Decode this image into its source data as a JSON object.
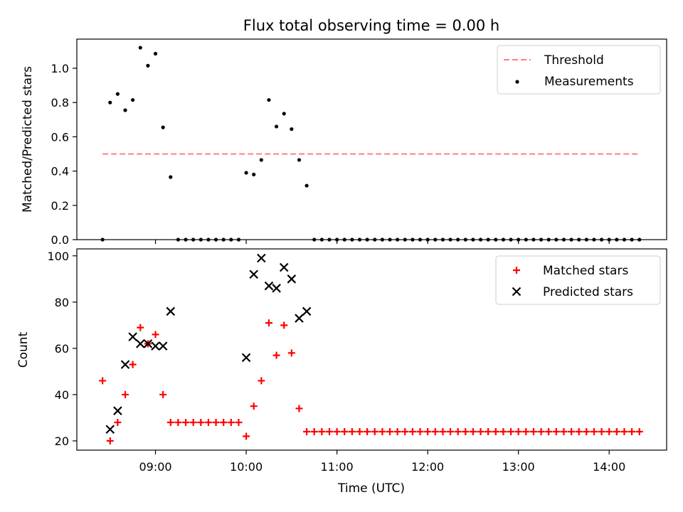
{
  "chart_data": [
    {
      "type": "scatter",
      "title": "Flux total observing time = 0.00 h",
      "xlabel": "",
      "ylabel": "Matched/Predicted stars",
      "ylim": [
        0,
        1.17
      ],
      "xlim": [
        "08:08",
        "14:38"
      ],
      "y_ticks": [
        "0.0",
        "0.2",
        "0.4",
        "0.6",
        "0.8",
        "1.0"
      ],
      "y_tick_values": [
        0,
        0.2,
        0.4,
        0.6,
        0.8,
        1.0
      ],
      "legend_position": "top-right",
      "threshold": {
        "name": "Threshold",
        "y": 0.5,
        "x_start": "08:25",
        "x_end": "14:20",
        "color": "#ff7f7f",
        "style": "dashed"
      },
      "series": [
        {
          "name": "Measurements",
          "color": "#000000",
          "marker": "dot",
          "points": [
            [
              "08:25",
              0.0
            ],
            [
              "08:30",
              0.8
            ],
            [
              "08:35",
              0.85
            ],
            [
              "08:40",
              0.755
            ],
            [
              "08:45",
              0.815
            ],
            [
              "08:50",
              1.12
            ],
            [
              "08:55",
              1.015
            ],
            [
              "09:00",
              1.085
            ],
            [
              "09:05",
              0.655
            ],
            [
              "09:10",
              0.365
            ],
            [
              "09:15",
              0.0
            ],
            [
              "09:20",
              0.0
            ],
            [
              "09:25",
              0.0
            ],
            [
              "09:30",
              0.0
            ],
            [
              "09:35",
              0.0
            ],
            [
              "09:40",
              0.0
            ],
            [
              "09:45",
              0.0
            ],
            [
              "09:50",
              0.0
            ],
            [
              "09:55",
              0.0
            ],
            [
              "10:00",
              0.39
            ],
            [
              "10:05",
              0.38
            ],
            [
              "10:10",
              0.465
            ],
            [
              "10:15",
              0.815
            ],
            [
              "10:20",
              0.66
            ],
            [
              "10:25",
              0.735
            ],
            [
              "10:30",
              0.645
            ],
            [
              "10:35",
              0.465
            ],
            [
              "10:40",
              0.315
            ],
            [
              "10:45",
              0.0
            ],
            [
              "10:50",
              0.0
            ],
            [
              "10:55",
              0.0
            ],
            [
              "11:00",
              0.0
            ],
            [
              "11:05",
              0.0
            ],
            [
              "11:10",
              0.0
            ],
            [
              "11:15",
              0.0
            ],
            [
              "11:20",
              0.0
            ],
            [
              "11:25",
              0.0
            ],
            [
              "11:30",
              0.0
            ],
            [
              "11:35",
              0.0
            ],
            [
              "11:40",
              0.0
            ],
            [
              "11:45",
              0.0
            ],
            [
              "11:50",
              0.0
            ],
            [
              "11:55",
              0.0
            ],
            [
              "12:00",
              0.0
            ],
            [
              "12:05",
              0.0
            ],
            [
              "12:10",
              0.0
            ],
            [
              "12:15",
              0.0
            ],
            [
              "12:20",
              0.0
            ],
            [
              "12:25",
              0.0
            ],
            [
              "12:30",
              0.0
            ],
            [
              "12:35",
              0.0
            ],
            [
              "12:40",
              0.0
            ],
            [
              "12:45",
              0.0
            ],
            [
              "12:50",
              0.0
            ],
            [
              "12:55",
              0.0
            ],
            [
              "13:00",
              0.0
            ],
            [
              "13:05",
              0.0
            ],
            [
              "13:10",
              0.0
            ],
            [
              "13:15",
              0.0
            ],
            [
              "13:20",
              0.0
            ],
            [
              "13:25",
              0.0
            ],
            [
              "13:30",
              0.0
            ],
            [
              "13:35",
              0.0
            ],
            [
              "13:40",
              0.0
            ],
            [
              "13:45",
              0.0
            ],
            [
              "13:50",
              0.0
            ],
            [
              "13:55",
              0.0
            ],
            [
              "14:00",
              0.0
            ],
            [
              "14:05",
              0.0
            ],
            [
              "14:10",
              0.0
            ],
            [
              "14:15",
              0.0
            ],
            [
              "14:20",
              0.0
            ]
          ]
        }
      ]
    },
    {
      "type": "scatter",
      "title": "",
      "xlabel": "Time (UTC)",
      "ylabel": "Count",
      "ylim": [
        16,
        103
      ],
      "xlim": [
        "08:08",
        "14:38"
      ],
      "x_ticks": [
        "09:00",
        "10:00",
        "11:00",
        "12:00",
        "13:00",
        "14:00"
      ],
      "y_ticks": [
        "20",
        "40",
        "60",
        "80",
        "100"
      ],
      "y_tick_values": [
        20,
        40,
        60,
        80,
        100
      ],
      "legend_position": "top-right",
      "series": [
        {
          "name": "Matched stars",
          "color": "#ff0000",
          "marker": "plus",
          "points": [
            [
              "08:25",
              46
            ],
            [
              "08:30",
              20
            ],
            [
              "08:35",
              28
            ],
            [
              "08:40",
              40
            ],
            [
              "08:45",
              53
            ],
            [
              "08:50",
              69
            ],
            [
              "08:55",
              62
            ],
            [
              "09:00",
              66
            ],
            [
              "09:05",
              40
            ],
            [
              "09:10",
              28
            ],
            [
              "09:15",
              28
            ],
            [
              "09:20",
              28
            ],
            [
              "09:25",
              28
            ],
            [
              "09:30",
              28
            ],
            [
              "09:35",
              28
            ],
            [
              "09:40",
              28
            ],
            [
              "09:45",
              28
            ],
            [
              "09:50",
              28
            ],
            [
              "09:55",
              28
            ],
            [
              "10:00",
              22
            ],
            [
              "10:05",
              35
            ],
            [
              "10:10",
              46
            ],
            [
              "10:15",
              71
            ],
            [
              "10:20",
              57
            ],
            [
              "10:25",
              70
            ],
            [
              "10:30",
              58
            ],
            [
              "10:35",
              34
            ],
            [
              "10:40",
              24
            ],
            [
              "10:45",
              24
            ],
            [
              "10:50",
              24
            ],
            [
              "10:55",
              24
            ],
            [
              "11:00",
              24
            ],
            [
              "11:05",
              24
            ],
            [
              "11:10",
              24
            ],
            [
              "11:15",
              24
            ],
            [
              "11:20",
              24
            ],
            [
              "11:25",
              24
            ],
            [
              "11:30",
              24
            ],
            [
              "11:35",
              24
            ],
            [
              "11:40",
              24
            ],
            [
              "11:45",
              24
            ],
            [
              "11:50",
              24
            ],
            [
              "11:55",
              24
            ],
            [
              "12:00",
              24
            ],
            [
              "12:05",
              24
            ],
            [
              "12:10",
              24
            ],
            [
              "12:15",
              24
            ],
            [
              "12:20",
              24
            ],
            [
              "12:25",
              24
            ],
            [
              "12:30",
              24
            ],
            [
              "12:35",
              24
            ],
            [
              "12:40",
              24
            ],
            [
              "12:45",
              24
            ],
            [
              "12:50",
              24
            ],
            [
              "12:55",
              24
            ],
            [
              "13:00",
              24
            ],
            [
              "13:05",
              24
            ],
            [
              "13:10",
              24
            ],
            [
              "13:15",
              24
            ],
            [
              "13:20",
              24
            ],
            [
              "13:25",
              24
            ],
            [
              "13:30",
              24
            ],
            [
              "13:35",
              24
            ],
            [
              "13:40",
              24
            ],
            [
              "13:45",
              24
            ],
            [
              "13:50",
              24
            ],
            [
              "13:55",
              24
            ],
            [
              "14:00",
              24
            ],
            [
              "14:05",
              24
            ],
            [
              "14:10",
              24
            ],
            [
              "14:15",
              24
            ],
            [
              "14:20",
              24
            ]
          ]
        },
        {
          "name": "Predicted stars",
          "color": "#000000",
          "marker": "x",
          "points": [
            [
              "08:30",
              25
            ],
            [
              "08:35",
              33
            ],
            [
              "08:40",
              53
            ],
            [
              "08:45",
              65
            ],
            [
              "08:50",
              62
            ],
            [
              "08:55",
              62
            ],
            [
              "09:00",
              61
            ],
            [
              "09:05",
              61
            ],
            [
              "09:10",
              76
            ],
            [
              "10:00",
              56
            ],
            [
              "10:05",
              92
            ],
            [
              "10:10",
              99
            ],
            [
              "10:15",
              87
            ],
            [
              "10:20",
              86
            ],
            [
              "10:25",
              95
            ],
            [
              "10:30",
              90
            ],
            [
              "10:35",
              73
            ],
            [
              "10:40",
              76
            ]
          ]
        }
      ]
    }
  ]
}
